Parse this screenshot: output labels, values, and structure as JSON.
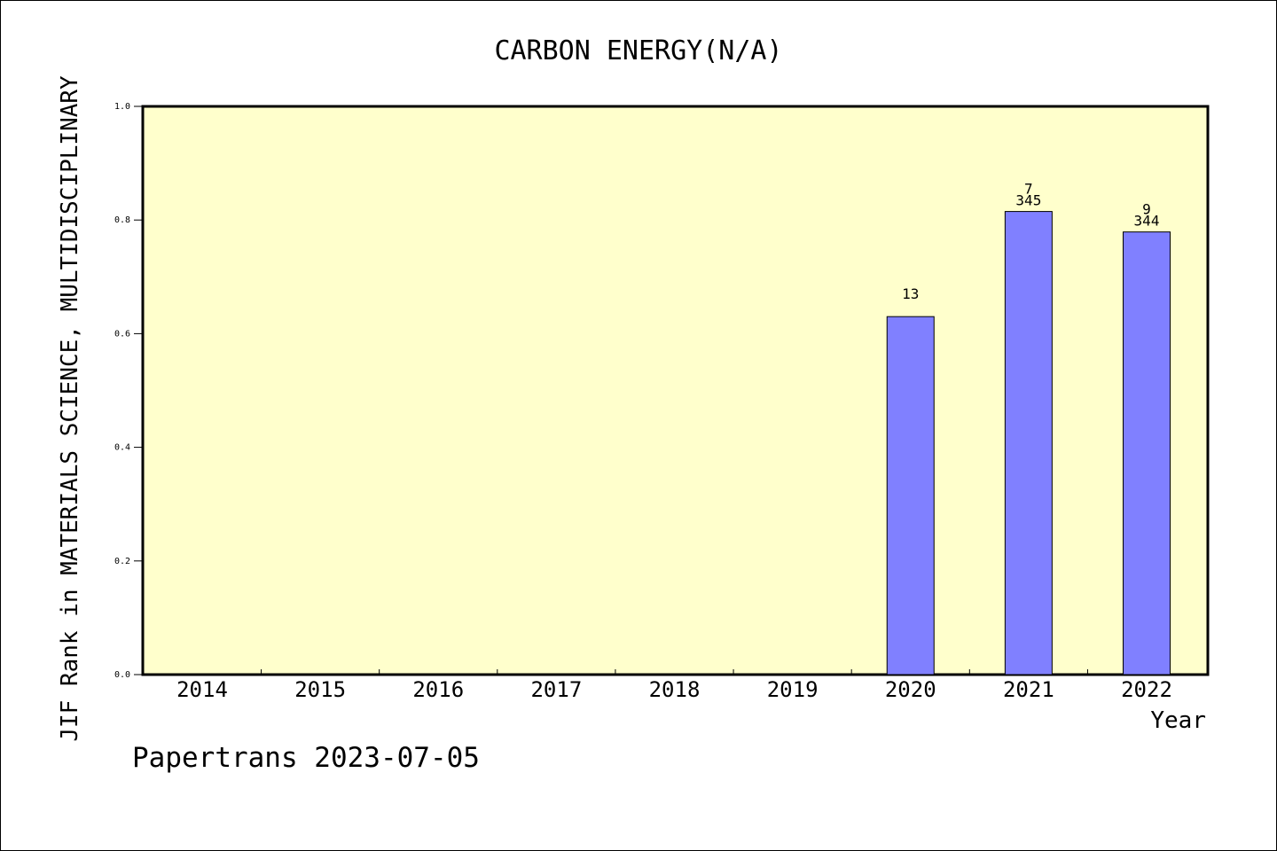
{
  "chart_data": {
    "type": "bar",
    "title": "CARBON ENERGY(N/A)",
    "xlabel": "Year",
    "ylabel": "JIF Rank in MATERIALS SCIENCE, MULTIDISCIPLINARY",
    "categories": [
      "2014",
      "2015",
      "2016",
      "2017",
      "2018",
      "2019",
      "2020",
      "2021",
      "2022"
    ],
    "values": [
      null,
      null,
      null,
      null,
      null,
      null,
      0.63,
      0.815,
      0.779
    ],
    "rank_labels": [
      "",
      "",
      "",
      "",
      "",
      "",
      "13",
      "7",
      "9"
    ],
    "total_labels": [
      "",
      "",
      "",
      "",
      "",
      "",
      "",
      "345",
      "344"
    ],
    "ylim": [
      0,
      1.0
    ],
    "yticks": [
      0.0,
      0.2,
      0.4,
      0.6,
      0.8,
      1.0
    ],
    "ytick_labels": [
      "0.0",
      "0.2",
      "0.4",
      "0.6",
      "0.8",
      "1.0"
    ],
    "grid": false,
    "colors": {
      "plot_background": "#ffffcc",
      "bar_fill": "#8080ff",
      "bar_stroke": "#000000"
    }
  },
  "footer": {
    "watermark": "Papertrans 2023-07-05"
  }
}
